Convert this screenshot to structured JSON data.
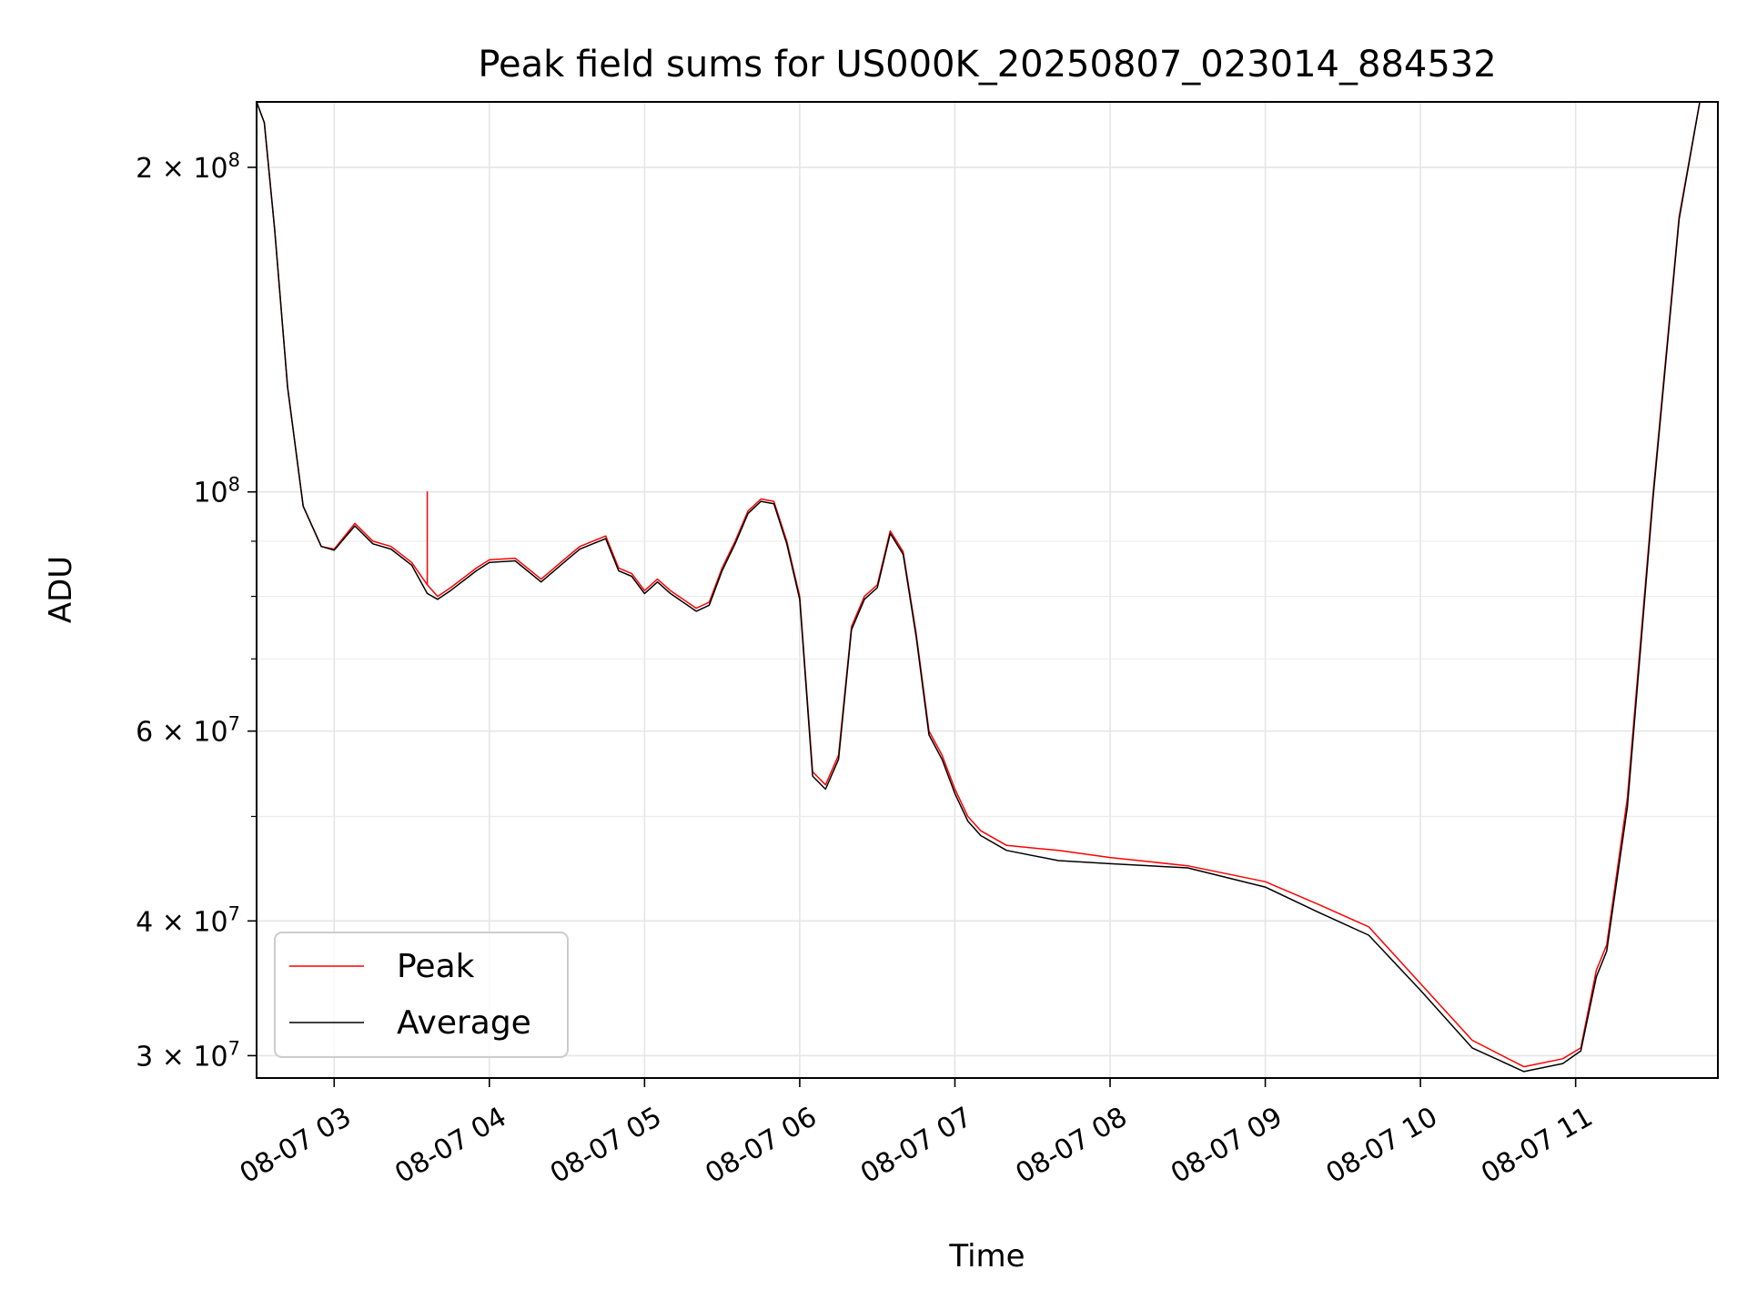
{
  "chart_data": {
    "type": "line",
    "title": "Peak field sums for US000K_20250807_023014_884532",
    "xlabel": "Time",
    "ylabel": "ADU",
    "yscale": "log",
    "grid": true,
    "legend_position": "lower-left",
    "xlim": [
      "2025-08-07 02:30",
      "2025-08-07 11:55"
    ],
    "ylim": [
      28600000,
      230000000
    ],
    "x_ticks": [
      {
        "value": "2025-08-07 03:00",
        "label": "08-07 03"
      },
      {
        "value": "2025-08-07 04:00",
        "label": "08-07 04"
      },
      {
        "value": "2025-08-07 05:00",
        "label": "08-07 05"
      },
      {
        "value": "2025-08-07 06:00",
        "label": "08-07 06"
      },
      {
        "value": "2025-08-07 07:00",
        "label": "08-07 07"
      },
      {
        "value": "2025-08-07 08:00",
        "label": "08-07 08"
      },
      {
        "value": "2025-08-07 09:00",
        "label": "08-07 09"
      },
      {
        "value": "2025-08-07 10:00",
        "label": "08-07 10"
      },
      {
        "value": "2025-08-07 11:00",
        "label": "08-07 11"
      }
    ],
    "y_ticks": [
      {
        "value": 200000000,
        "base": "2",
        "exp": "8"
      },
      {
        "value": 100000000,
        "base": "",
        "exp": "8"
      },
      {
        "value": 60000000,
        "base": "6",
        "exp": "7"
      },
      {
        "value": 40000000,
        "base": "4",
        "exp": "7"
      },
      {
        "value": 30000000,
        "base": "3",
        "exp": "7"
      }
    ],
    "y_minor_ticks": [
      50000000,
      70000000,
      80000000,
      90000000
    ],
    "series": [
      {
        "name": "Peak",
        "color": "#ff0000",
        "x": [
          "2025-08-07 02:30",
          "2025-08-07 02:33",
          "2025-08-07 02:37",
          "2025-08-07 02:42",
          "2025-08-07 02:48",
          "2025-08-07 02:55",
          "2025-08-07 03:00",
          "2025-08-07 03:08",
          "2025-08-07 03:15",
          "2025-08-07 03:22",
          "2025-08-07 03:30",
          "2025-08-07 03:36",
          "2025-08-07 03:36",
          "2025-08-07 03:36",
          "2025-08-07 03:40",
          "2025-08-07 03:45",
          "2025-08-07 03:55",
          "2025-08-07 04:00",
          "2025-08-07 04:10",
          "2025-08-07 04:20",
          "2025-08-07 04:30",
          "2025-08-07 04:35",
          "2025-08-07 04:45",
          "2025-08-07 04:50",
          "2025-08-07 04:55",
          "2025-08-07 05:00",
          "2025-08-07 05:05",
          "2025-08-07 05:10",
          "2025-08-07 05:20",
          "2025-08-07 05:25",
          "2025-08-07 05:30",
          "2025-08-07 05:35",
          "2025-08-07 05:40",
          "2025-08-07 05:45",
          "2025-08-07 05:50",
          "2025-08-07 05:55",
          "2025-08-07 06:00",
          "2025-08-07 06:05",
          "2025-08-07 06:10",
          "2025-08-07 06:15",
          "2025-08-07 06:20",
          "2025-08-07 06:25",
          "2025-08-07 06:30",
          "2025-08-07 06:35",
          "2025-08-07 06:40",
          "2025-08-07 06:45",
          "2025-08-07 06:50",
          "2025-08-07 06:55",
          "2025-08-07 07:00",
          "2025-08-07 07:05",
          "2025-08-07 07:10",
          "2025-08-07 07:20",
          "2025-08-07 07:40",
          "2025-08-07 08:00",
          "2025-08-07 08:30",
          "2025-08-07 09:00",
          "2025-08-07 09:20",
          "2025-08-07 09:40",
          "2025-08-07 10:00",
          "2025-08-07 10:20",
          "2025-08-07 10:40",
          "2025-08-07 10:55",
          "2025-08-07 11:02",
          "2025-08-07 11:08",
          "2025-08-07 11:12",
          "2025-08-07 11:20",
          "2025-08-07 11:30",
          "2025-08-07 11:40",
          "2025-08-07 11:48",
          "2025-08-07 11:55"
        ],
        "values": [
          230000000,
          220000000,
          175000000,
          125000000,
          97000000,
          89000000,
          88500000,
          93500000,
          90000000,
          89000000,
          86000000,
          82000000,
          100000000,
          82000000,
          80000000,
          81500000,
          85000000,
          86500000,
          86800000,
          83000000,
          87000000,
          89000000,
          91000000,
          85000000,
          84000000,
          81000000,
          83000000,
          81000000,
          78000000,
          79000000,
          85000000,
          90000000,
          96000000,
          98500000,
          98000000,
          90000000,
          80000000,
          55000000,
          53500000,
          57000000,
          75000000,
          80000000,
          82000000,
          92000000,
          88000000,
          74000000,
          60000000,
          57000000,
          53000000,
          50000000,
          48500000,
          47000000,
          46500000,
          45800000,
          45000000,
          43500000,
          41500000,
          39500000,
          35000000,
          31000000,
          29300000,
          29800000,
          30500000,
          36000000,
          38000000,
          52000000,
          100000000,
          180000000,
          230000000,
          230000000
        ]
      },
      {
        "name": "Average",
        "color": "#000000",
        "x": [
          "2025-08-07 02:30",
          "2025-08-07 02:33",
          "2025-08-07 02:37",
          "2025-08-07 02:42",
          "2025-08-07 02:48",
          "2025-08-07 02:55",
          "2025-08-07 03:00",
          "2025-08-07 03:08",
          "2025-08-07 03:15",
          "2025-08-07 03:22",
          "2025-08-07 03:30",
          "2025-08-07 03:36",
          "2025-08-07 03:40",
          "2025-08-07 03:45",
          "2025-08-07 03:55",
          "2025-08-07 04:00",
          "2025-08-07 04:10",
          "2025-08-07 04:20",
          "2025-08-07 04:30",
          "2025-08-07 04:35",
          "2025-08-07 04:45",
          "2025-08-07 04:50",
          "2025-08-07 04:55",
          "2025-08-07 05:00",
          "2025-08-07 05:05",
          "2025-08-07 05:10",
          "2025-08-07 05:20",
          "2025-08-07 05:25",
          "2025-08-07 05:30",
          "2025-08-07 05:35",
          "2025-08-07 05:40",
          "2025-08-07 05:45",
          "2025-08-07 05:50",
          "2025-08-07 05:55",
          "2025-08-07 06:00",
          "2025-08-07 06:05",
          "2025-08-07 06:10",
          "2025-08-07 06:15",
          "2025-08-07 06:20",
          "2025-08-07 06:25",
          "2025-08-07 06:30",
          "2025-08-07 06:35",
          "2025-08-07 06:40",
          "2025-08-07 06:45",
          "2025-08-07 06:50",
          "2025-08-07 06:55",
          "2025-08-07 07:00",
          "2025-08-07 07:05",
          "2025-08-07 07:10",
          "2025-08-07 07:20",
          "2025-08-07 07:40",
          "2025-08-07 08:00",
          "2025-08-07 08:30",
          "2025-08-07 09:00",
          "2025-08-07 09:20",
          "2025-08-07 09:40",
          "2025-08-07 10:00",
          "2025-08-07 10:20",
          "2025-08-07 10:40",
          "2025-08-07 10:55",
          "2025-08-07 11:02",
          "2025-08-07 11:08",
          "2025-08-07 11:12",
          "2025-08-07 11:20",
          "2025-08-07 11:30",
          "2025-08-07 11:40",
          "2025-08-07 11:48",
          "2025-08-07 11:55"
        ],
        "values": [
          230000000,
          220000000,
          175000000,
          125000000,
          97000000,
          89000000,
          88300000,
          93000000,
          89500000,
          88500000,
          85500000,
          80500000,
          79500000,
          81000000,
          84500000,
          86000000,
          86300000,
          82500000,
          86500000,
          88500000,
          90500000,
          84500000,
          83500000,
          80500000,
          82500000,
          80500000,
          77500000,
          78500000,
          84500000,
          89500000,
          95500000,
          98000000,
          97500000,
          89500000,
          79500000,
          54500000,
          53000000,
          56500000,
          74500000,
          79500000,
          81500000,
          91500000,
          87500000,
          73500000,
          59500000,
          56500000,
          52500000,
          49500000,
          48000000,
          46500000,
          45500000,
          45200000,
          44800000,
          43000000,
          40800000,
          38800000,
          34500000,
          30500000,
          29000000,
          29500000,
          30300000,
          35500000,
          37500000,
          51000000,
          99000000,
          179000000,
          230000000,
          230000000
        ]
      }
    ]
  }
}
